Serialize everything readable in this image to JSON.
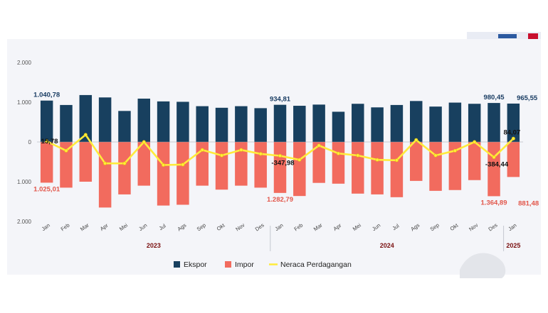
{
  "colors": {
    "ekspor": "#18405f",
    "impor": "#f26b5e",
    "neraca": "#ffeb3b",
    "neraca_stroke": "#e6c800",
    "label_ekspor": "#1a3d63",
    "label_impor": "#e2564a",
    "label_neraca": "#111111"
  },
  "chart_data": {
    "type": "bar",
    "title": "",
    "xlabel": "",
    "ylabel": "",
    "ylim": [
      -2000,
      2000
    ],
    "y_tick_values": [
      2000,
      1000,
      0,
      -1000,
      -2000
    ],
    "y_tick_labels": [
      "2.000",
      "1.000",
      "0",
      "1.000",
      "2.000"
    ],
    "categories": [
      "Jan",
      "Feb",
      "Mar",
      "Apr",
      "Mei",
      "Jun",
      "Jul",
      "Ags",
      "Sep",
      "Okt",
      "Nov",
      "Des",
      "Jan",
      "Feb",
      "Mar",
      "Apr",
      "Mei",
      "Jun",
      "Jul",
      "Ags",
      "Sep",
      "Okt",
      "Nov",
      "Des",
      "Jan"
    ],
    "year_groups": [
      {
        "label": "2023",
        "start": 0,
        "end": 11
      },
      {
        "label": "2024",
        "start": 12,
        "end": 23
      },
      {
        "label": "2025",
        "start": 24,
        "end": 24
      }
    ],
    "series": [
      {
        "name": "Ekspor",
        "kind": "bar",
        "values": [
          1040.78,
          930,
          1180,
          1120,
          780,
          1090,
          1020,
          1010,
          900,
          860,
          900,
          850,
          934.81,
          910,
          940,
          760,
          960,
          870,
          930,
          1030,
          890,
          990,
          960,
          980.45,
          965.55
        ]
      },
      {
        "name": "Impor",
        "kind": "bar",
        "values": [
          -1025.01,
          -1150,
          -1000,
          -1650,
          -1320,
          -1100,
          -1600,
          -1580,
          -1100,
          -1200,
          -1100,
          -1150,
          -1282.79,
          -1360,
          -1030,
          -1050,
          -1300,
          -1320,
          -1390,
          -980,
          -1230,
          -1210,
          -960,
          -1364.89,
          -881.48
        ]
      },
      {
        "name": "Neraca Perdagangan",
        "kind": "line",
        "values": [
          15.78,
          -220,
          180,
          -540,
          -540,
          0,
          -580,
          -570,
          -200,
          -340,
          -200,
          -300,
          -347.98,
          -450,
          -90,
          -290,
          -340,
          -450,
          -460,
          50,
          -340,
          -220,
          0,
          -384.44,
          84.07
        ]
      }
    ],
    "data_labels": [
      {
        "series": 0,
        "index": 0,
        "text": "1.040,78"
      },
      {
        "series": 0,
        "index": 12,
        "text": "934,81"
      },
      {
        "series": 0,
        "index": 23,
        "text": "980,45"
      },
      {
        "series": 0,
        "index": 24,
        "text": "965,55"
      },
      {
        "series": 1,
        "index": 0,
        "text": "1.025,01"
      },
      {
        "series": 1,
        "index": 12,
        "text": "1.282,79"
      },
      {
        "series": 1,
        "index": 23,
        "text": "1.364,89"
      },
      {
        "series": 1,
        "index": 24,
        "text": "881,48"
      },
      {
        "series": 2,
        "index": 0,
        "text": "15,78"
      },
      {
        "series": 2,
        "index": 12,
        "text": "-347,98"
      },
      {
        "series": 2,
        "index": 23,
        "text": "-384,44"
      },
      {
        "series": 2,
        "index": 24,
        "text": "84,07"
      }
    ],
    "grid": false,
    "legend": "bottom-center"
  }
}
